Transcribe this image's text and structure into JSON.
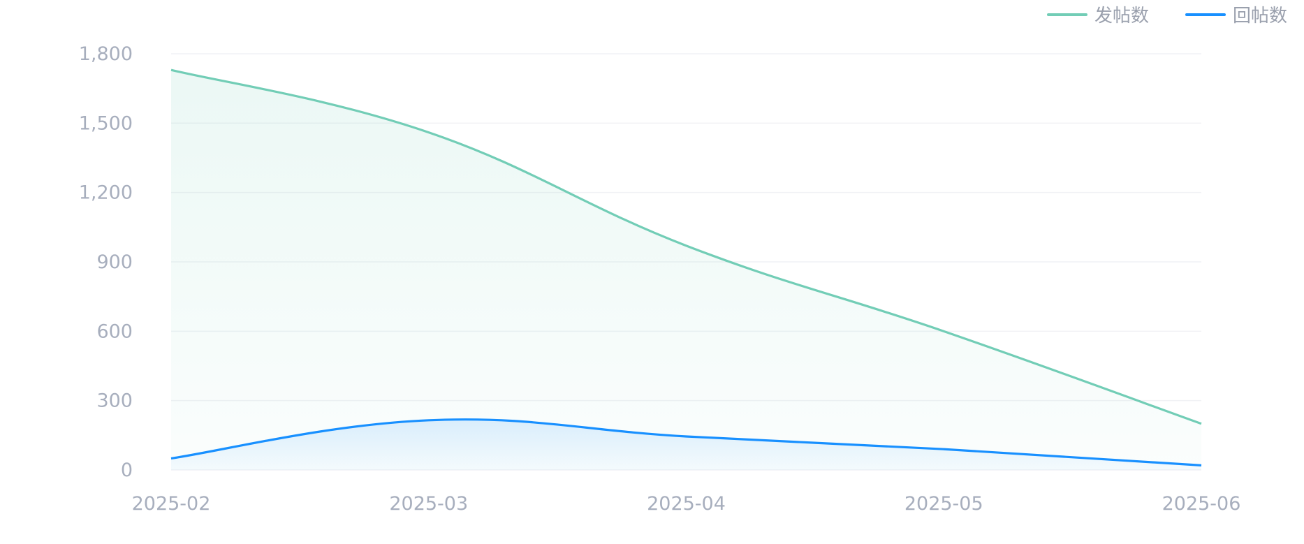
{
  "chart_data": {
    "type": "area",
    "x": [
      "2025-02",
      "2025-03",
      "2025-04",
      "2025-05",
      "2025-06"
    ],
    "series": [
      {
        "name": "发帖数",
        "values": [
          1730,
          1460,
          970,
          600,
          200
        ],
        "color": "#72cdb6"
      },
      {
        "name": "回帖数",
        "values": [
          50,
          215,
          145,
          90,
          20
        ],
        "color": "#1890ff"
      }
    ],
    "ylim": [
      0,
      1800
    ],
    "yticks": [
      0,
      300,
      600,
      900,
      1200,
      1500,
      1800
    ],
    "ytick_labels": [
      "0",
      "300",
      "600",
      "900",
      "1,200",
      "1,500",
      "1,800"
    ],
    "grid": true,
    "smooth": true,
    "legend_position": "top-right"
  }
}
